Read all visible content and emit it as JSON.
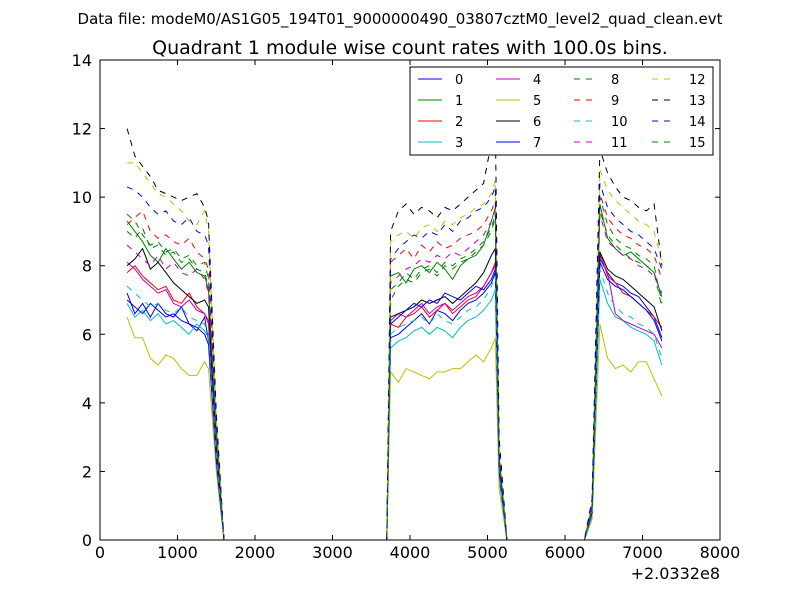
{
  "suptitle": "Data file: modeM0/AS1G05_194T01_9000000490_03807cztM0_level2_quad_clean.evt",
  "chart_data": {
    "type": "line",
    "title": "Quadrant 1 module wise count rates with 100.0s bins.",
    "xlabel": "",
    "ylabel": "",
    "x_offset_text": "+2.0332e8",
    "xlim": [
      0,
      8000
    ],
    "ylim": [
      0,
      14
    ],
    "xticks": [
      0,
      1000,
      2000,
      3000,
      4000,
      5000,
      6000,
      7000,
      8000
    ],
    "yticks": [
      0,
      2,
      4,
      6,
      8,
      10,
      12,
      14
    ],
    "grid": false,
    "legend_placement": "top-right",
    "legend_columns": 4,
    "x": [
      350,
      450,
      550,
      650,
      750,
      850,
      950,
      1050,
      1150,
      1250,
      1350,
      1400,
      1500,
      1600,
      1700,
      3600,
      3700,
      3750,
      3850,
      3950,
      4050,
      4150,
      4250,
      4350,
      4450,
      4550,
      4650,
      4750,
      4850,
      4950,
      5050,
      5100,
      5150,
      5250,
      5350,
      6250,
      6350,
      6450,
      6550,
      6650,
      6750,
      6850,
      6950,
      7050,
      7150,
      7250
    ],
    "series": [
      {
        "name": "0",
        "color": "#0000ff",
        "dash": "solid",
        "values": [
          7.2,
          6.6,
          6.9,
          6.5,
          6.9,
          6.6,
          6.5,
          6.8,
          6.3,
          6.1,
          6.5,
          5.8,
          2.5,
          0,
          0,
          0,
          0,
          5.9,
          6.0,
          6.2,
          6.4,
          6.6,
          6.3,
          6.7,
          6.6,
          6.4,
          6.7,
          6.9,
          7.0,
          7.2,
          7.5,
          7.8,
          2.0,
          0,
          0,
          0,
          0.8,
          8.2,
          7.8,
          7.5,
          7.4,
          7.2,
          7.1,
          6.8,
          6.5,
          5.9
        ]
      },
      {
        "name": "1",
        "color": "#008000",
        "dash": "solid",
        "values": [
          9.3,
          9.0,
          8.7,
          8.3,
          8.1,
          8.5,
          8.2,
          7.9,
          8.1,
          7.8,
          7.7,
          7.3,
          3.0,
          0,
          0,
          0,
          0,
          7.7,
          7.8,
          7.5,
          7.9,
          8.0,
          7.8,
          8.1,
          7.9,
          7.6,
          8.0,
          8.2,
          8.3,
          8.6,
          9.3,
          9.7,
          2.3,
          0,
          0,
          0,
          1.0,
          9.8,
          8.8,
          8.5,
          8.3,
          8.4,
          8.2,
          8.0,
          7.8,
          7.1
        ]
      },
      {
        "name": "2",
        "color": "#ff0000",
        "dash": "solid",
        "values": [
          7.8,
          8.0,
          7.7,
          7.5,
          7.3,
          7.4,
          7.0,
          6.9,
          7.2,
          6.8,
          6.6,
          6.3,
          2.7,
          0,
          0,
          0,
          0,
          6.3,
          6.2,
          6.5,
          6.6,
          6.8,
          6.5,
          6.7,
          6.9,
          6.6,
          6.8,
          7.0,
          7.1,
          7.4,
          7.8,
          8.1,
          2.1,
          0,
          0,
          0,
          0.8,
          8.4,
          7.7,
          7.5,
          7.2,
          7.1,
          6.9,
          6.7,
          6.5,
          6.2
        ]
      },
      {
        "name": "3",
        "color": "#00bfbf",
        "dash": "solid",
        "values": [
          6.9,
          6.5,
          6.7,
          6.4,
          6.6,
          6.3,
          6.4,
          6.2,
          6.0,
          6.3,
          6.1,
          5.9,
          2.4,
          0,
          0,
          0,
          0,
          5.6,
          5.8,
          5.9,
          6.1,
          6.2,
          6.0,
          6.2,
          6.1,
          5.9,
          6.2,
          6.4,
          6.5,
          6.7,
          7.0,
          7.3,
          1.8,
          0,
          0,
          0,
          0.7,
          7.6,
          6.9,
          6.5,
          6.4,
          6.2,
          6.1,
          6.0,
          5.8,
          5.1
        ]
      },
      {
        "name": "4",
        "color": "#bf00bf",
        "dash": "solid",
        "values": [
          8.1,
          7.9,
          7.6,
          7.4,
          7.2,
          7.3,
          6.9,
          6.8,
          7.0,
          6.7,
          6.6,
          6.4,
          2.6,
          0,
          0,
          0,
          0,
          6.4,
          6.6,
          6.5,
          6.7,
          6.9,
          6.6,
          6.8,
          6.9,
          6.7,
          6.9,
          7.1,
          7.2,
          7.4,
          7.8,
          8.0,
          2.0,
          0,
          0,
          0,
          0.8,
          8.3,
          7.8,
          6.6,
          6.4,
          6.3,
          6.2,
          6.1,
          6.0,
          5.6
        ]
      },
      {
        "name": "5",
        "color": "#bfbf00",
        "dash": "solid",
        "values": [
          6.5,
          5.9,
          5.9,
          5.3,
          5.1,
          5.4,
          5.3,
          5.0,
          4.8,
          4.8,
          5.2,
          5.0,
          2.0,
          0,
          0,
          0,
          0,
          4.9,
          4.6,
          5.0,
          4.9,
          4.8,
          4.7,
          4.9,
          4.9,
          5.0,
          5.0,
          5.2,
          5.4,
          5.2,
          5.6,
          5.9,
          1.5,
          0,
          0,
          0,
          0.6,
          6.3,
          5.3,
          5.0,
          5.1,
          4.9,
          5.2,
          5.2,
          4.7,
          4.2
        ]
      },
      {
        "name": "6",
        "color": "#000000",
        "dash": "solid",
        "values": [
          8.0,
          8.2,
          8.5,
          7.9,
          8.1,
          7.8,
          7.5,
          7.3,
          7.1,
          6.9,
          7.0,
          6.8,
          2.8,
          0,
          0,
          0,
          0,
          6.5,
          6.6,
          6.7,
          6.8,
          7.0,
          6.9,
          7.0,
          7.1,
          6.9,
          7.1,
          7.3,
          7.5,
          7.8,
          8.3,
          8.5,
          2.2,
          0,
          0,
          0,
          0.8,
          8.4,
          7.9,
          7.7,
          7.6,
          7.4,
          7.2,
          7.0,
          6.8,
          6.1
        ]
      },
      {
        "name": "7",
        "color": "#0000ff",
        "dash": "solid",
        "values": [
          7.0,
          6.8,
          6.6,
          6.9,
          6.7,
          6.5,
          6.6,
          6.4,
          6.3,
          6.2,
          6.0,
          5.7,
          2.3,
          0,
          0,
          0,
          0,
          6.3,
          6.5,
          6.7,
          6.9,
          6.8,
          7.0,
          6.9,
          7.2,
          7.1,
          7.0,
          7.2,
          7.4,
          7.3,
          7.6,
          7.9,
          2.0,
          0,
          0,
          0,
          0.8,
          8.1,
          7.6,
          7.4,
          7.3,
          7.1,
          6.9,
          6.7,
          6.4,
          5.8
        ]
      },
      {
        "name": "8",
        "color": "#008000",
        "dash": "dashed",
        "values": [
          9.5,
          9.3,
          8.9,
          8.6,
          8.7,
          8.4,
          8.5,
          8.2,
          8.3,
          8.0,
          8.1,
          7.6,
          3.1,
          0,
          0,
          0,
          0,
          7.3,
          7.5,
          7.8,
          7.6,
          7.9,
          8.0,
          7.8,
          8.1,
          8.0,
          8.2,
          8.3,
          8.5,
          8.7,
          9.1,
          9.5,
          2.4,
          0,
          0,
          0,
          1.0,
          10.0,
          9.2,
          8.8,
          8.6,
          8.5,
          8.3,
          8.2,
          8.0,
          6.9
        ]
      },
      {
        "name": "9",
        "color": "#ff0000",
        "dash": "dashed",
        "values": [
          9.2,
          9.4,
          9.6,
          9.0,
          8.8,
          8.9,
          8.7,
          8.6,
          8.8,
          8.4,
          8.2,
          7.9,
          3.2,
          0,
          0,
          0,
          0,
          8.1,
          8.3,
          8.5,
          8.2,
          8.6,
          8.4,
          8.7,
          8.5,
          8.6,
          8.8,
          8.9,
          9.0,
          9.2,
          9.6,
          9.9,
          2.5,
          0,
          0,
          0,
          1.0,
          10.1,
          9.4,
          9.1,
          8.9,
          8.8,
          8.6,
          8.5,
          8.3,
          7.6
        ]
      },
      {
        "name": "10",
        "color": "#00bfbf",
        "dash": "dashed",
        "values": [
          7.4,
          7.2,
          7.0,
          6.8,
          6.9,
          6.7,
          6.6,
          6.8,
          6.5,
          6.4,
          6.3,
          6.0,
          2.5,
          0,
          0,
          0,
          0,
          6.0,
          6.2,
          6.3,
          6.4,
          6.5,
          6.3,
          6.6,
          6.4,
          6.3,
          6.5,
          6.7,
          6.8,
          7.0,
          7.4,
          7.7,
          1.9,
          0,
          0,
          0,
          0.7,
          7.9,
          7.2,
          6.8,
          6.6,
          6.5,
          6.3,
          6.2,
          6.0,
          5.3
        ]
      },
      {
        "name": "11",
        "color": "#bf00bf",
        "dash": "dashed",
        "values": [
          8.6,
          8.4,
          8.2,
          8.0,
          8.3,
          7.9,
          8.1,
          7.8,
          7.7,
          7.9,
          7.6,
          7.2,
          2.9,
          0,
          0,
          0,
          0,
          7.5,
          7.7,
          7.9,
          8.0,
          8.2,
          8.1,
          8.3,
          8.2,
          8.4,
          8.3,
          8.5,
          8.7,
          8.9,
          9.3,
          9.6,
          2.3,
          0,
          0,
          0,
          0.9,
          9.5,
          8.7,
          8.5,
          8.3,
          8.2,
          8.0,
          7.9,
          7.7,
          7.2
        ]
      },
      {
        "name": "12",
        "color": "#bfbf00",
        "dash": "dashed",
        "values": [
          11.0,
          11.0,
          10.7,
          10.4,
          10.1,
          10.0,
          9.8,
          9.6,
          9.3,
          9.2,
          9.6,
          9.0,
          3.6,
          0,
          0,
          0,
          0,
          8.7,
          8.9,
          9.0,
          8.8,
          9.1,
          9.2,
          9.0,
          9.3,
          9.2,
          9.4,
          9.5,
          9.7,
          9.8,
          10.1,
          10.5,
          2.6,
          0,
          0,
          0,
          1.1,
          10.8,
          10.2,
          9.9,
          9.7,
          9.5,
          9.3,
          9.2,
          9.0,
          8.1
        ]
      },
      {
        "name": "13",
        "color": "#000000",
        "dash": "dashed",
        "values": [
          12.0,
          11.2,
          10.9,
          10.6,
          10.2,
          10.1,
          10.0,
          9.9,
          10.0,
          10.1,
          9.7,
          9.3,
          3.7,
          0,
          0,
          0,
          0,
          9.0,
          9.6,
          9.8,
          9.5,
          9.7,
          9.6,
          9.4,
          9.7,
          9.6,
          9.8,
          10.0,
          10.2,
          10.4,
          11.6,
          12.2,
          3.0,
          0,
          0,
          0,
          1.2,
          11.4,
          10.7,
          10.3,
          10.0,
          9.9,
          9.7,
          9.6,
          9.8,
          8.0
        ]
      },
      {
        "name": "14",
        "color": "#0000ff",
        "dash": "dashed",
        "values": [
          10.3,
          10.2,
          10.0,
          9.7,
          9.5,
          9.6,
          9.3,
          9.2,
          9.4,
          9.0,
          8.9,
          8.6,
          3.4,
          0,
          0,
          0,
          0,
          8.2,
          8.5,
          8.7,
          8.9,
          8.8,
          9.0,
          8.9,
          9.2,
          9.0,
          9.3,
          9.4,
          9.6,
          9.7,
          10.0,
          10.3,
          2.6,
          0,
          0,
          0,
          1.1,
          10.4,
          9.7,
          9.4,
          9.2,
          9.0,
          8.9,
          8.7,
          8.5,
          7.9
        ]
      },
      {
        "name": "15",
        "color": "#008000",
        "dash": "dashed",
        "values": [
          9.0,
          8.8,
          9.1,
          8.5,
          8.6,
          8.3,
          8.4,
          8.1,
          8.2,
          7.9,
          7.8,
          7.4,
          3.0,
          0,
          0,
          0,
          0,
          7.0,
          7.4,
          7.6,
          7.5,
          7.8,
          7.9,
          7.7,
          8.0,
          7.9,
          8.1,
          8.2,
          8.4,
          8.6,
          9.0,
          9.4,
          2.4,
          0,
          0,
          0,
          0.9,
          9.6,
          8.9,
          8.6,
          8.4,
          8.2,
          8.1,
          8.0,
          7.8,
          6.8
        ]
      }
    ]
  }
}
